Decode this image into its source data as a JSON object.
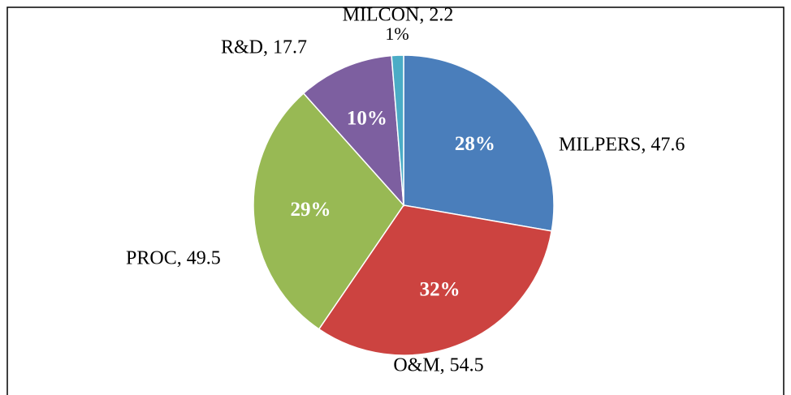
{
  "chart_data": {
    "type": "pie",
    "categories": [
      "MILPERS",
      "O&M",
      "PROC",
      "R&D",
      "MILCON"
    ],
    "values": [
      47.6,
      54.5,
      49.5,
      17.7,
      2.2
    ],
    "labels": [
      "MILPERS, 47.6",
      "O&M, 54.5",
      "PROC, 49.5",
      "R&D, 17.7",
      "MILCON, 2.2"
    ],
    "value_labels": [
      "28%",
      "32%",
      "29%",
      "10%",
      "1%"
    ],
    "colors": [
      "#4a7ebb",
      "#cc4340",
      "#98b954",
      "#7d5fa0",
      "#4bacc6"
    ]
  }
}
